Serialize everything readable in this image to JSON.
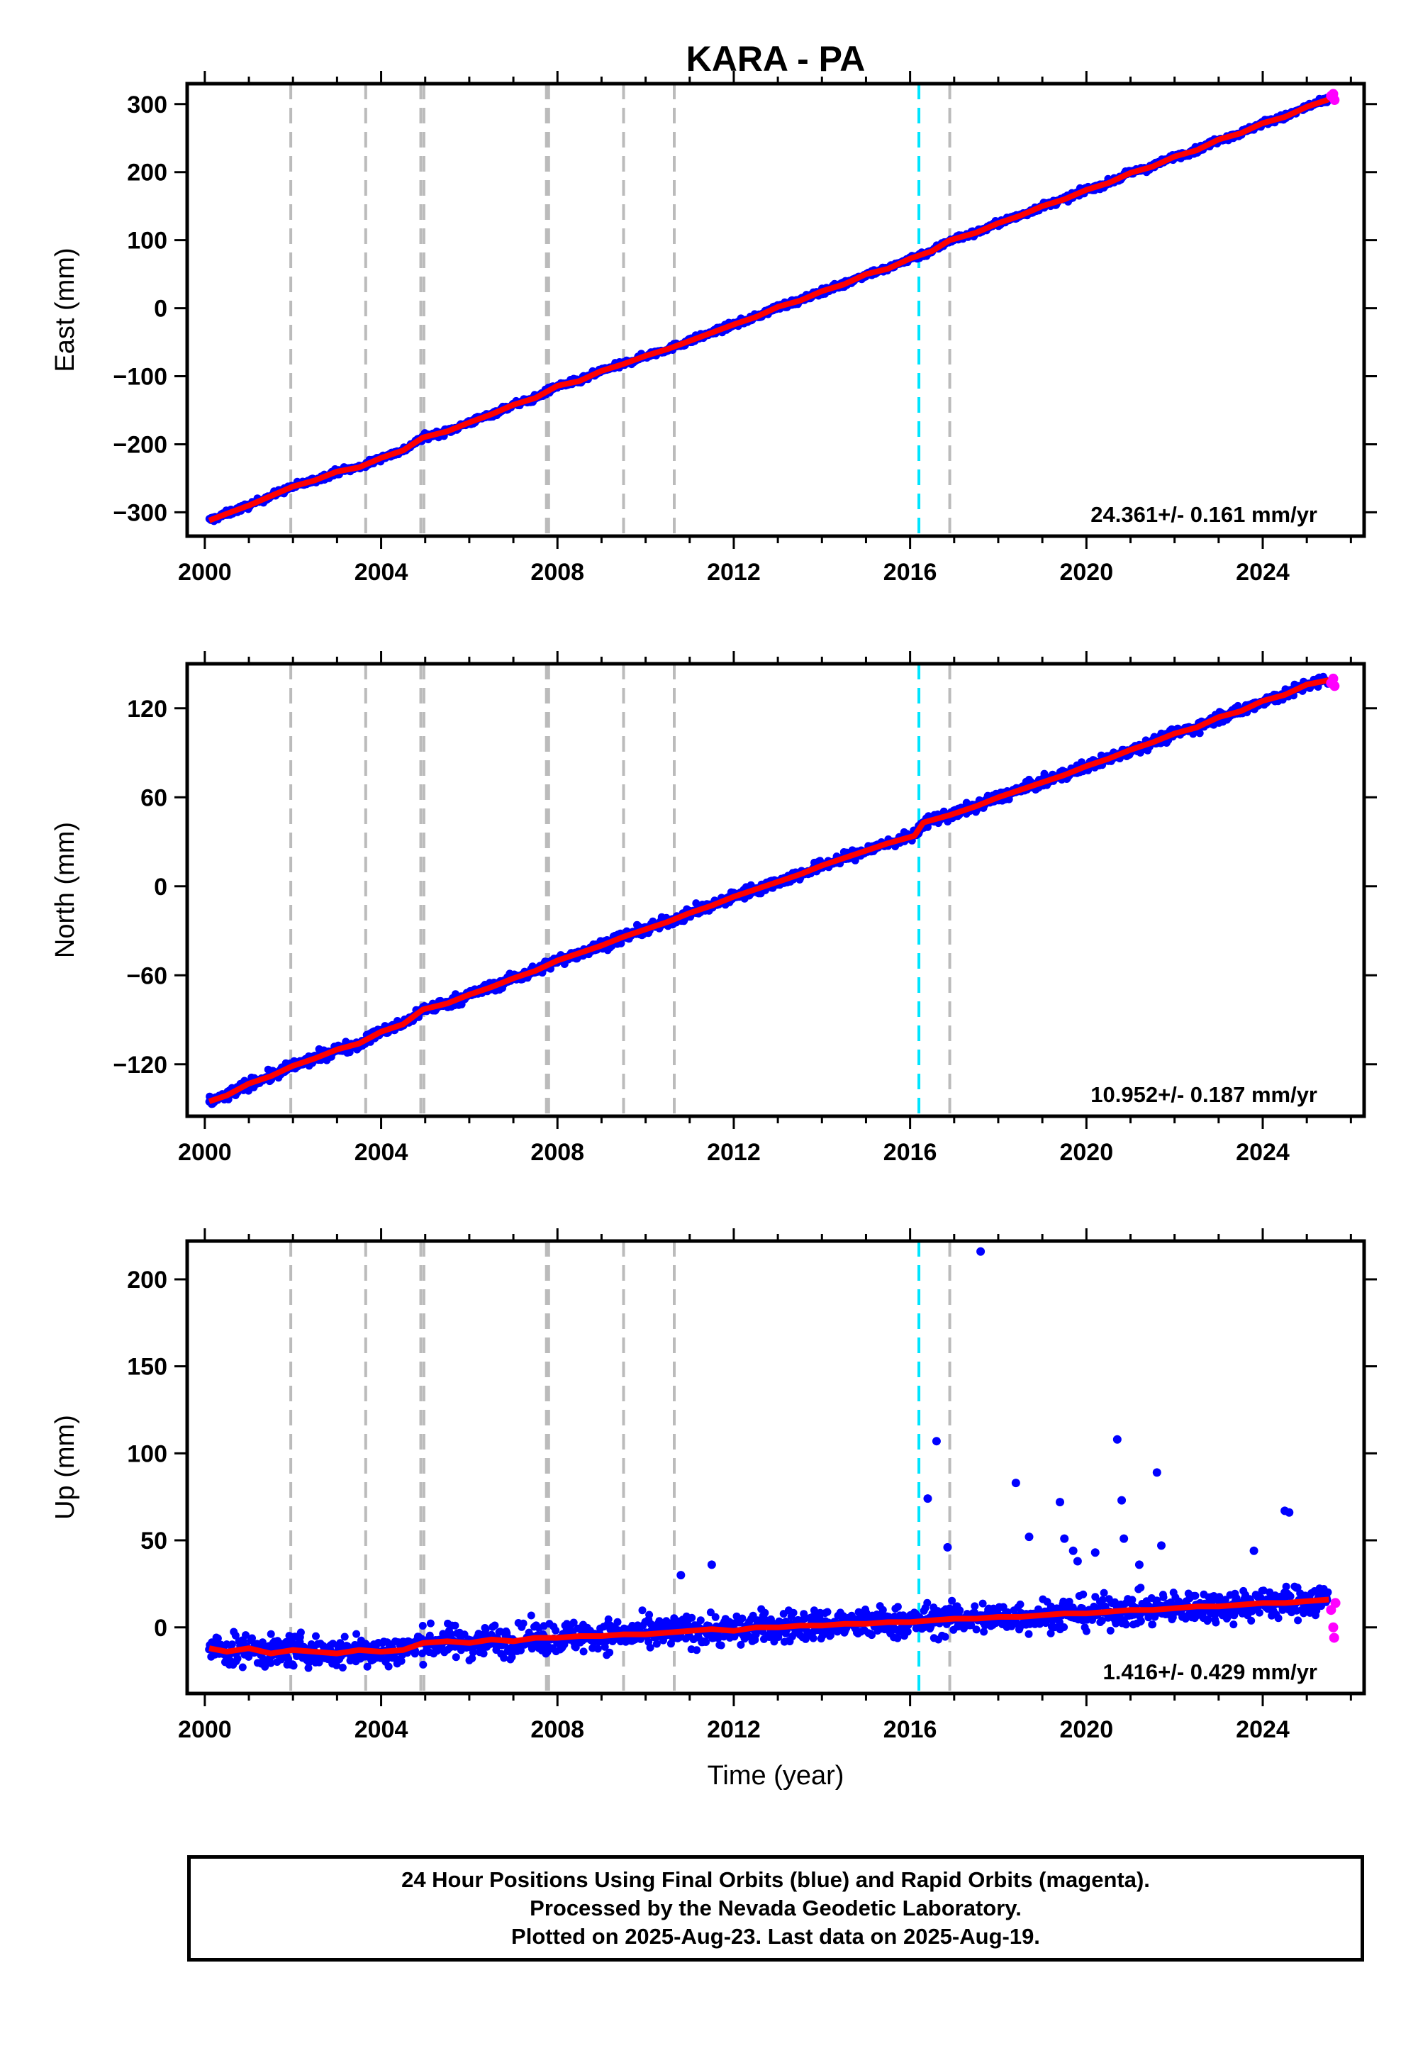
{
  "figure": {
    "title": "KARA - PA",
    "footer": [
      "24 Hour Positions Using Final Orbits (blue) and Rapid Orbits (magenta).",
      "Processed by the Nevada Geodetic Laboratory.",
      "Plotted on 2025-Aug-23. Last data on 2025-Aug-19."
    ],
    "colors": {
      "final_orbits": "#0000ff",
      "rapid_orbits": "#ff00ff",
      "model": "#ff0000",
      "equipment_change": "#bbbbbb",
      "earthquake": "#00e5ff"
    },
    "equipment_change_years": [
      2001.95,
      2003.65,
      2004.9,
      2004.97,
      2007.75,
      2007.8,
      2009.5,
      2010.65,
      2016.9
    ],
    "earthquake_years": [
      2016.2
    ]
  },
  "chart_data": [
    {
      "type": "scatter",
      "component": "East",
      "ylabel": "East (mm)",
      "xlabel": "",
      "xlim": [
        1999.6,
        2026.3
      ],
      "ylim": [
        -335,
        330
      ],
      "x_ticks": [
        2000,
        2004,
        2008,
        2012,
        2016,
        2020,
        2024
      ],
      "y_ticks": [
        -300,
        -200,
        -100,
        0,
        100,
        200,
        300
      ],
      "y_tick_labels": [
        "−300",
        "−200",
        "−100",
        "0",
        "100",
        "200",
        "300"
      ],
      "rate_text": "24.361+/- 0.161 mm/yr",
      "series": [
        {
          "points": [
            [
              2000.1,
              -312
            ],
            [
              2000.5,
              -302
            ],
            [
              2001.0,
              -290
            ],
            [
              2001.5,
              -276
            ],
            [
              2002.0,
              -262
            ],
            [
              2002.5,
              -253
            ],
            [
              2003.0,
              -240
            ],
            [
              2003.5,
              -234
            ],
            [
              2004.0,
              -220
            ],
            [
              2004.5,
              -209
            ],
            [
              2004.95,
              -190
            ],
            [
              2005.5,
              -181
            ],
            [
              2006.0,
              -168
            ],
            [
              2006.5,
              -156
            ],
            [
              2007.0,
              -142
            ],
            [
              2007.5,
              -132
            ],
            [
              2008.0,
              -114
            ],
            [
              2008.5,
              -107
            ],
            [
              2009.0,
              -92
            ],
            [
              2009.5,
              -82
            ],
            [
              2010.0,
              -70
            ],
            [
              2010.5,
              -60
            ],
            [
              2011.0,
              -48
            ],
            [
              2011.5,
              -36
            ],
            [
              2012.0,
              -24
            ],
            [
              2012.5,
              -13
            ],
            [
              2013.0,
              2
            ],
            [
              2013.5,
              11
            ],
            [
              2014.0,
              25
            ],
            [
              2014.5,
              35
            ],
            [
              2015.0,
              50
            ],
            [
              2015.5,
              58
            ],
            [
              2016.0,
              73
            ],
            [
              2016.5,
              84
            ],
            [
              2016.9,
              100
            ],
            [
              2017.5,
              111
            ],
            [
              2018.0,
              125
            ],
            [
              2018.5,
              136
            ],
            [
              2019.0,
              150
            ],
            [
              2019.5,
              160
            ],
            [
              2020.0,
              174
            ],
            [
              2020.5,
              184
            ],
            [
              2021.0,
              199
            ],
            [
              2021.5,
              208
            ],
            [
              2022.0,
              223
            ],
            [
              2022.5,
              232
            ],
            [
              2023.0,
              248
            ],
            [
              2023.5,
              257
            ],
            [
              2024.0,
              272
            ],
            [
              2024.5,
              281
            ],
            [
              2025.0,
              296
            ],
            [
              2025.5,
              307
            ]
          ]
        },
        {
          "points": [
            [
              2025.55,
              312
            ],
            [
              2025.6,
              315
            ],
            [
              2025.63,
              306
            ]
          ]
        }
      ]
    },
    {
      "type": "scatter",
      "component": "North",
      "ylabel": "North (mm)",
      "xlabel": "",
      "xlim": [
        1999.6,
        2026.3
      ],
      "ylim": [
        -155,
        150
      ],
      "x_ticks": [
        2000,
        2004,
        2008,
        2012,
        2016,
        2020,
        2024
      ],
      "y_ticks": [
        -120,
        -60,
        0,
        60,
        120
      ],
      "y_tick_labels": [
        "−120",
        "−60",
        "0",
        "60",
        "120"
      ],
      "rate_text": "10.952+/- 0.187 mm/yr",
      "series": [
        {
          "points": [
            [
              2000.1,
              -145
            ],
            [
              2000.5,
              -141
            ],
            [
              2001.0,
              -133
            ],
            [
              2001.5,
              -128
            ],
            [
              2002.0,
              -121
            ],
            [
              2002.5,
              -116
            ],
            [
              2003.0,
              -110
            ],
            [
              2003.5,
              -106
            ],
            [
              2004.0,
              -98
            ],
            [
              2004.5,
              -93
            ],
            [
              2004.95,
              -83
            ],
            [
              2005.5,
              -79
            ],
            [
              2006.0,
              -73
            ],
            [
              2006.5,
              -68
            ],
            [
              2007.0,
              -62
            ],
            [
              2007.5,
              -57
            ],
            [
              2008.0,
              -50
            ],
            [
              2008.5,
              -45
            ],
            [
              2009.0,
              -40
            ],
            [
              2009.5,
              -34
            ],
            [
              2010.0,
              -29
            ],
            [
              2010.5,
              -24
            ],
            [
              2011.0,
              -18
            ],
            [
              2011.5,
              -13
            ],
            [
              2012.0,
              -7
            ],
            [
              2012.5,
              -2
            ],
            [
              2013.0,
              3
            ],
            [
              2013.5,
              8
            ],
            [
              2014.0,
              14
            ],
            [
              2014.5,
              19
            ],
            [
              2015.0,
              24
            ],
            [
              2015.5,
              29
            ],
            [
              2016.1,
              34
            ],
            [
              2016.3,
              43
            ],
            [
              2016.9,
              48
            ],
            [
              2017.5,
              54
            ],
            [
              2018.0,
              60
            ],
            [
              2018.5,
              65
            ],
            [
              2019.0,
              70
            ],
            [
              2019.5,
              75
            ],
            [
              2020.0,
              81
            ],
            [
              2020.5,
              86
            ],
            [
              2021.0,
              92
            ],
            [
              2021.5,
              97
            ],
            [
              2022.0,
              103
            ],
            [
              2022.5,
              107
            ],
            [
              2023.0,
              114
            ],
            [
              2023.5,
              118
            ],
            [
              2024.0,
              125
            ],
            [
              2024.5,
              129
            ],
            [
              2025.0,
              136
            ],
            [
              2025.5,
              139
            ]
          ]
        },
        {
          "points": [
            [
              2025.55,
              137
            ],
            [
              2025.6,
              140
            ],
            [
              2025.63,
              135
            ]
          ]
        }
      ]
    },
    {
      "type": "scatter",
      "component": "Up",
      "ylabel": "Up (mm)",
      "xlabel": "Time (year)",
      "xlim": [
        1999.6,
        2026.3
      ],
      "ylim": [
        -38,
        222
      ],
      "x_ticks": [
        2000,
        2004,
        2008,
        2012,
        2016,
        2020,
        2024
      ],
      "y_ticks": [
        0,
        50,
        100,
        150,
        200
      ],
      "y_tick_labels": [
        "0",
        "50",
        "100",
        "150",
        "200"
      ],
      "rate_text": "1.416+/- 0.429 mm/yr",
      "outliers": [
        [
          2016.4,
          74
        ],
        [
          2016.6,
          107
        ],
        [
          2016.85,
          46
        ],
        [
          2017.6,
          216
        ],
        [
          2018.4,
          83
        ],
        [
          2018.7,
          52
        ],
        [
          2019.4,
          72
        ],
        [
          2019.5,
          51
        ],
        [
          2019.7,
          44
        ],
        [
          2019.8,
          38
        ],
        [
          2020.2,
          43
        ],
        [
          2020.7,
          108
        ],
        [
          2020.8,
          73
        ],
        [
          2020.85,
          51
        ],
        [
          2021.2,
          36
        ],
        [
          2021.6,
          89
        ],
        [
          2021.7,
          47
        ],
        [
          2024.5,
          67
        ],
        [
          2024.6,
          66
        ],
        [
          2023.8,
          44
        ],
        [
          2011.5,
          36
        ],
        [
          2010.8,
          30
        ]
      ],
      "series": [
        {
          "points": [
            [
              2000.1,
              -12
            ],
            [
              2000.5,
              -14
            ],
            [
              2001.0,
              -12
            ],
            [
              2001.5,
              -15
            ],
            [
              2002.0,
              -13
            ],
            [
              2002.5,
              -14
            ],
            [
              2003.0,
              -15
            ],
            [
              2003.5,
              -13
            ],
            [
              2004.0,
              -14
            ],
            [
              2004.5,
              -13
            ],
            [
              2004.95,
              -9
            ],
            [
              2005.5,
              -8
            ],
            [
              2006.0,
              -9
            ],
            [
              2006.5,
              -7
            ],
            [
              2007.0,
              -8
            ],
            [
              2007.5,
              -6
            ],
            [
              2008.0,
              -6
            ],
            [
              2008.5,
              -5
            ],
            [
              2009.0,
              -5
            ],
            [
              2009.5,
              -4
            ],
            [
              2010.0,
              -4
            ],
            [
              2010.5,
              -3
            ],
            [
              2011.0,
              -2
            ],
            [
              2011.5,
              -1
            ],
            [
              2012.0,
              -2
            ],
            [
              2012.5,
              0
            ],
            [
              2013.0,
              0
            ],
            [
              2013.5,
              1
            ],
            [
              2014.0,
              1
            ],
            [
              2014.5,
              2
            ],
            [
              2015.0,
              2
            ],
            [
              2015.5,
              3
            ],
            [
              2016.0,
              3
            ],
            [
              2016.5,
              4
            ],
            [
              2017.0,
              5
            ],
            [
              2017.5,
              5
            ],
            [
              2018.0,
              6
            ],
            [
              2018.5,
              6
            ],
            [
              2019.0,
              7
            ],
            [
              2019.5,
              8
            ],
            [
              2020.0,
              8
            ],
            [
              2020.5,
              9
            ],
            [
              2021.0,
              10
            ],
            [
              2021.5,
              10
            ],
            [
              2022.0,
              11
            ],
            [
              2022.5,
              12
            ],
            [
              2023.0,
              12
            ],
            [
              2023.5,
              13
            ],
            [
              2024.0,
              14
            ],
            [
              2024.5,
              14
            ],
            [
              2025.0,
              15
            ],
            [
              2025.5,
              16
            ]
          ]
        },
        {
          "points": [
            [
              2025.55,
              10
            ],
            [
              2025.6,
              0
            ],
            [
              2025.62,
              -6
            ],
            [
              2025.65,
              14
            ]
          ]
        }
      ]
    }
  ]
}
